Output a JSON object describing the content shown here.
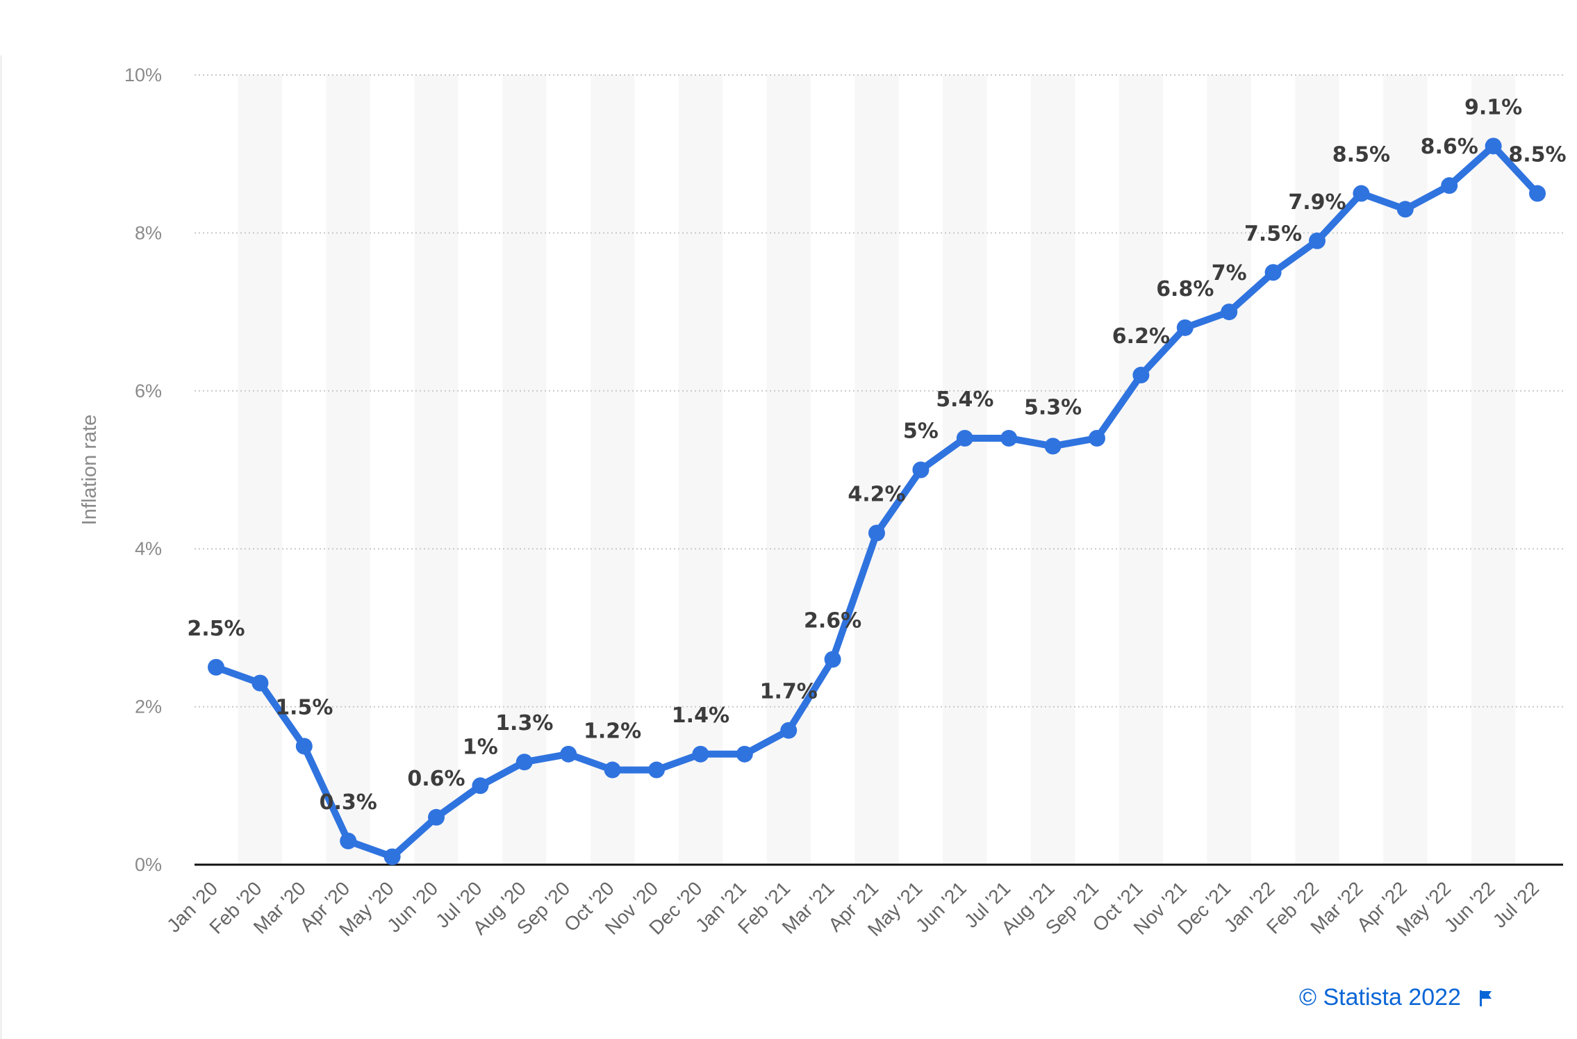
{
  "chart_data": {
    "type": "line",
    "title": "",
    "xlabel": "",
    "ylabel": "Inflation rate",
    "ylim": [
      0,
      10
    ],
    "yticks": [
      "0%",
      "2%",
      "4%",
      "6%",
      "8%",
      "10%"
    ],
    "grid": true,
    "categories": [
      "Jan '20",
      "Feb '20",
      "Mar '20",
      "Apr '20",
      "May '20",
      "Jun '20",
      "Jul '20",
      "Aug '20",
      "Sep '20",
      "Oct '20",
      "Nov '20",
      "Dec '20",
      "Jan '21",
      "Feb '21",
      "Mar '21",
      "Apr '21",
      "May '21",
      "Jun '21",
      "Jul '21",
      "Aug '21",
      "Sep '21",
      "Oct '21",
      "Nov '21",
      "Dec '21",
      "Jan '22",
      "Feb '22",
      "Mar '22",
      "Apr '22",
      "May '22",
      "Jun '22",
      "Jul '22"
    ],
    "series": [
      {
        "values": [
          2.5,
          2.3,
          1.5,
          0.3,
          0.1,
          0.6,
          1.0,
          1.3,
          1.4,
          1.2,
          1.2,
          1.4,
          1.4,
          1.7,
          2.6,
          4.2,
          5.0,
          5.4,
          5.4,
          5.3,
          5.4,
          6.2,
          6.8,
          7.0,
          7.5,
          7.9,
          8.5,
          8.3,
          8.6,
          9.1,
          8.5
        ],
        "color": "#2f73df"
      }
    ],
    "data_labels": [
      "2.5%",
      "",
      "1.5%",
      "0.3%",
      "",
      "0.6%",
      "1%",
      "1.3%",
      "",
      "1.2%",
      "",
      "1.4%",
      "",
      "1.7%",
      "2.6%",
      "4.2%",
      "5%",
      "5.4%",
      "",
      "5.3%",
      "",
      "6.2%",
      "6.8%",
      "7%",
      "7.5%",
      "7.9%",
      "8.5%",
      "",
      "8.6%",
      "9.1%",
      "8.5%"
    ]
  },
  "credit": {
    "text": "© Statista 2022",
    "icon": "flag-icon",
    "color": "#0a66d6"
  }
}
